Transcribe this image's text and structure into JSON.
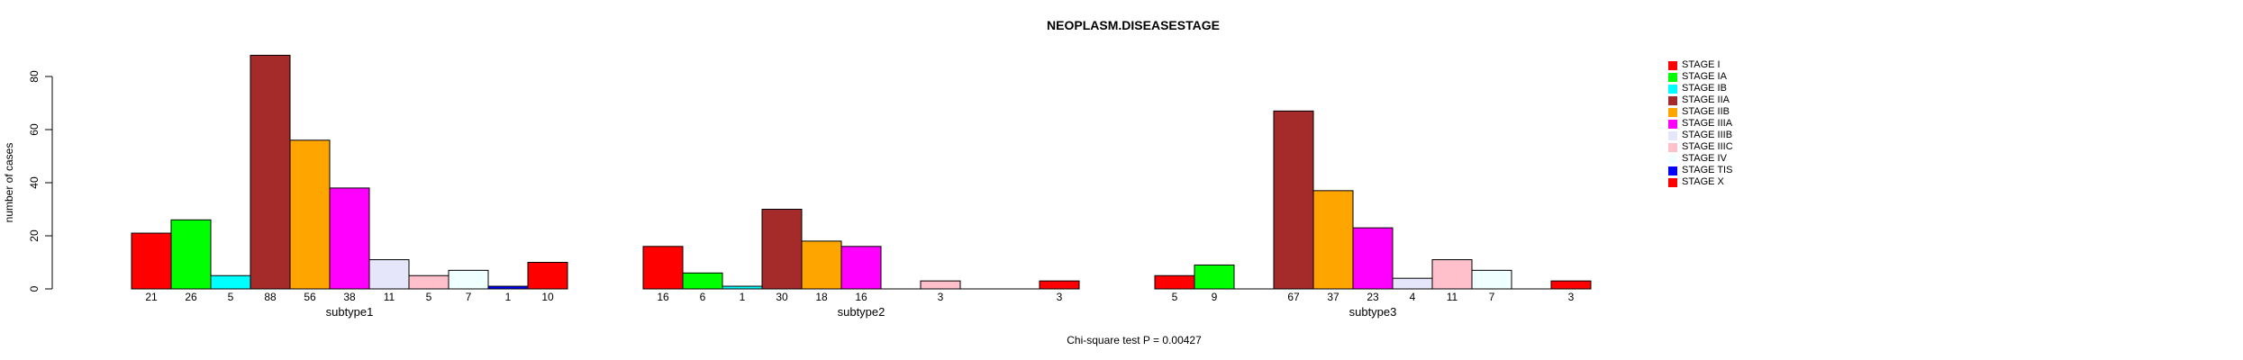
{
  "figure": {
    "title": "NEOPLASM.DISEASESTAGE",
    "caption": "Chi-square test P = 0.00427"
  },
  "chart_data": {
    "type": "bar",
    "title": "NEOPLASM.DISEASESTAGE",
    "xlabel": "",
    "ylabel": "number of cases",
    "annotation": "Chi-square test P = 0.00427",
    "categories": [
      "subtype1",
      "subtype2",
      "subtype3"
    ],
    "series": [
      {
        "name": "STAGE I",
        "color": "#FF0000",
        "values": [
          21,
          16,
          5
        ]
      },
      {
        "name": "STAGE IA",
        "color": "#00FF00",
        "values": [
          26,
          6,
          9
        ]
      },
      {
        "name": "STAGE IB",
        "color": "#00FFFF",
        "values": [
          5,
          1,
          0
        ]
      },
      {
        "name": "STAGE IIA",
        "color": "#A52A2A",
        "values": [
          88,
          30,
          67
        ]
      },
      {
        "name": "STAGE IIB",
        "color": "#FFA500",
        "values": [
          56,
          18,
          37
        ]
      },
      {
        "name": "STAGE IIIA",
        "color": "#FF00FF",
        "values": [
          38,
          16,
          23
        ]
      },
      {
        "name": "STAGE IIIB",
        "color": "#E6E6FA",
        "values": [
          11,
          0,
          4
        ]
      },
      {
        "name": "STAGE IIIC",
        "color": "#FFC0CB",
        "values": [
          5,
          3,
          11
        ]
      },
      {
        "name": "STAGE IV",
        "color": "#F0FFFF",
        "values": [
          7,
          0,
          7
        ]
      },
      {
        "name": "STAGE TIS",
        "color": "#0000FF",
        "values": [
          1,
          0,
          0
        ]
      },
      {
        "name": "STAGE X",
        "color": "#FF0000",
        "values": [
          10,
          3,
          3
        ]
      }
    ],
    "yticks": [
      0,
      20,
      40,
      60,
      80
    ],
    "ylim": [
      0,
      88
    ],
    "grid": false,
    "legend_position": "right-margin",
    "bar_value_labels": "value printed under each nonzero bar"
  }
}
